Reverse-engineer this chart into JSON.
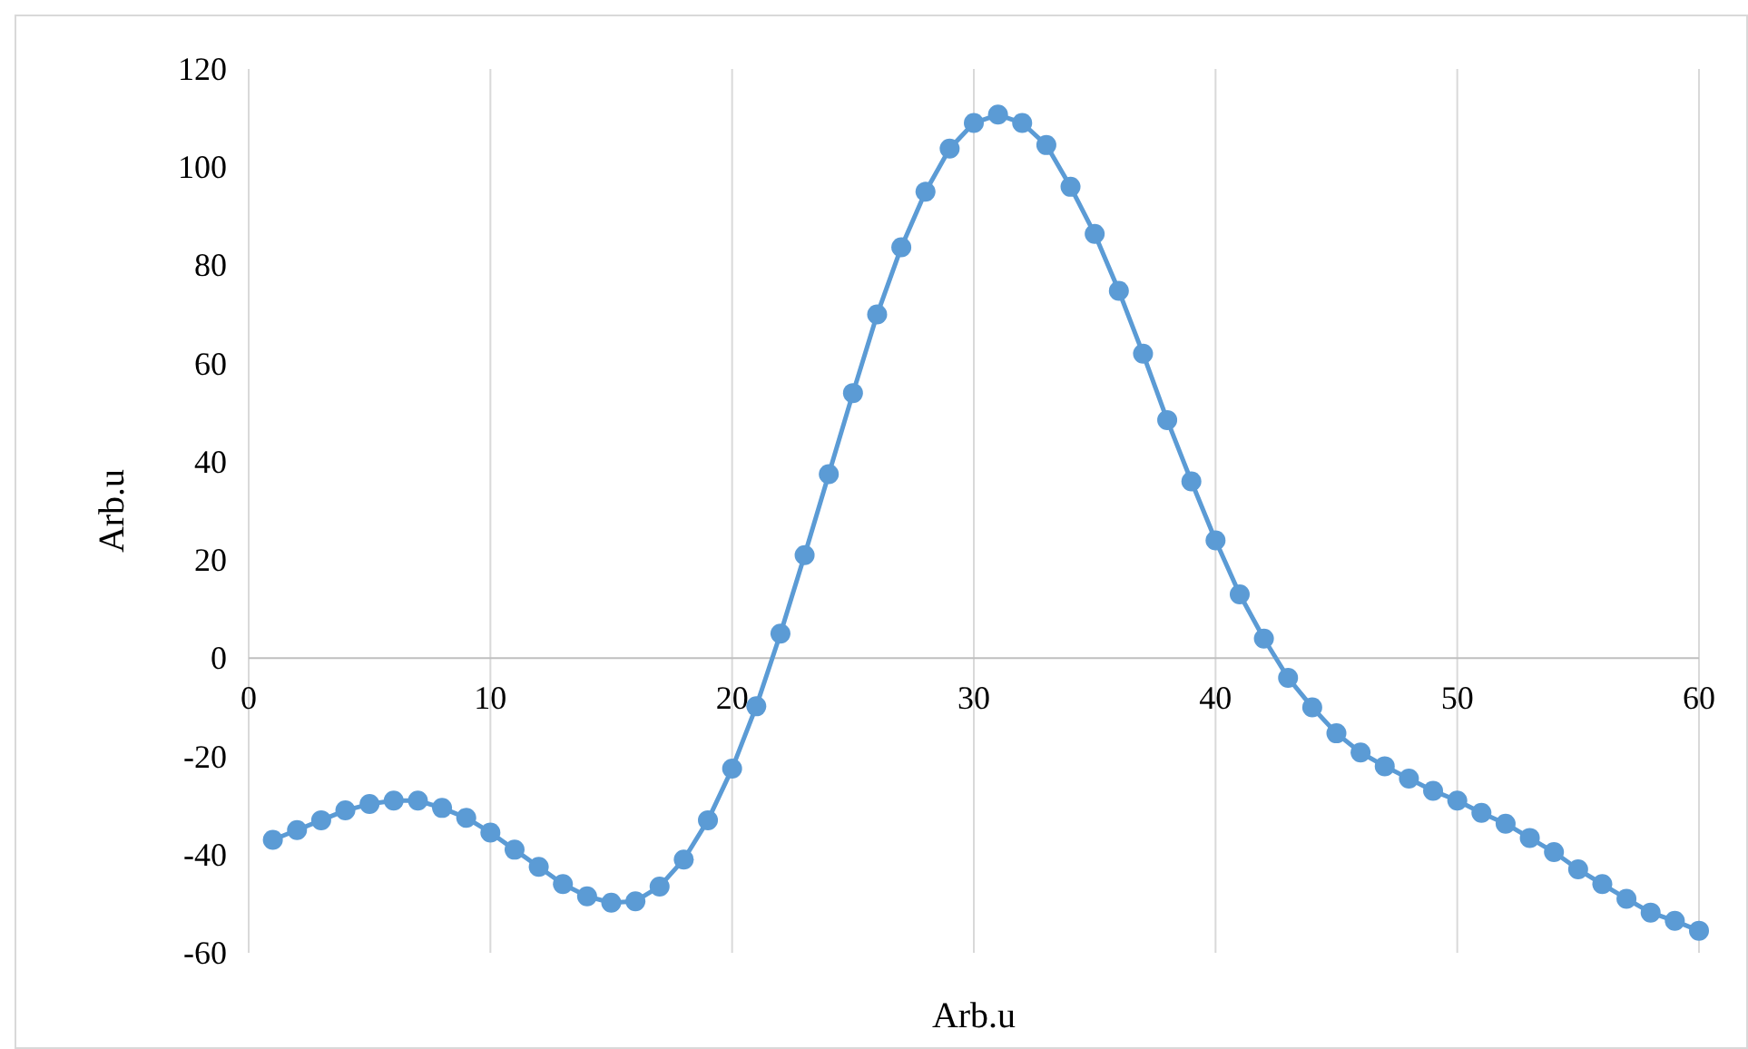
{
  "chart_data": {
    "type": "line",
    "xlabel": "Arb.u",
    "ylabel": "Arb.u",
    "xlim": [
      0,
      60
    ],
    "xticks": [
      0,
      10,
      20,
      30,
      40,
      50,
      60
    ],
    "ylim": [
      -60,
      120
    ],
    "yticks": [
      -60,
      -40,
      -20,
      0,
      20,
      40,
      60,
      80,
      100,
      120
    ],
    "grid": "x",
    "marker": "circle",
    "line_style": "solid",
    "x": [
      1,
      2,
      3,
      4,
      5,
      6,
      7,
      8,
      9,
      10,
      11,
      12,
      13,
      14,
      15,
      16,
      17,
      18,
      19,
      20,
      21,
      22,
      23,
      24,
      25,
      26,
      27,
      28,
      29,
      30,
      31,
      32,
      33,
      34,
      35,
      36,
      37,
      38,
      39,
      40,
      41,
      42,
      43,
      44,
      45,
      46,
      47,
      48,
      49,
      50,
      51,
      52,
      53,
      54,
      55,
      56,
      57,
      58,
      59,
      60
    ],
    "series": [
      {
        "color": "#5b9bd5",
        "values": [
          -37,
          -35,
          -33,
          -31,
          -29.7,
          -29,
          -29,
          -30.5,
          -32.5,
          -35.5,
          -39,
          -42.5,
          -46,
          -48.5,
          -49.8,
          -49.5,
          -46.5,
          -41,
          -33,
          -22.5,
          -9.8,
          5,
          21,
          37.5,
          54,
          70,
          83.7,
          95,
          103.8,
          109,
          110.7,
          109,
          104.5,
          96,
          86.4,
          74.8,
          62,
          48.5,
          36,
          24,
          13,
          4,
          -4,
          -10,
          -15.3,
          -19.2,
          -22,
          -24.5,
          -27,
          -29,
          -31.5,
          -33.7,
          -36.6,
          -39.5,
          -43,
          -46,
          -49,
          -51.8,
          -53.5,
          -55.5
        ]
      }
    ]
  }
}
